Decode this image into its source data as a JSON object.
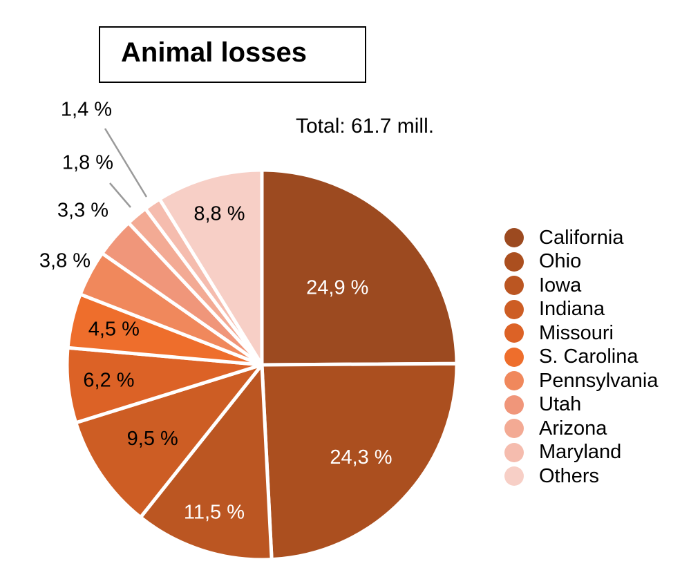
{
  "chart_data": {
    "type": "pie",
    "title": "Animal losses",
    "annotation": "Total: 61.7 mill.",
    "legend_position": "right",
    "slices": [
      {
        "name": "California",
        "value": 24.9,
        "label": "24,9 %",
        "color": "#9c4a20"
      },
      {
        "name": "Ohio",
        "value": 24.3,
        "label": "24,3 %",
        "color": "#ab4f1f"
      },
      {
        "name": "Iowa",
        "value": 11.5,
        "label": "11,5 %",
        "color": "#bb5622"
      },
      {
        "name": "Indiana",
        "value": 9.5,
        "label": "9,5 %",
        "color": "#cd5d24"
      },
      {
        "name": "Missouri",
        "value": 6.2,
        "label": "6,2 %",
        "color": "#dc6226"
      },
      {
        "name": "S. Carolina",
        "value": 4.5,
        "label": "4,5 %",
        "color": "#ee6e2c"
      },
      {
        "name": "Pennsylvania",
        "value": 3.8,
        "label": "3,8 %",
        "color": "#f0885c"
      },
      {
        "name": "Utah",
        "value": 3.3,
        "label": "3,3 %",
        "color": "#f0967a"
      },
      {
        "name": "Arizona",
        "value": 1.8,
        "label": "1,8 %",
        "color": "#f3aa94"
      },
      {
        "name": "Maryland",
        "value": 1.4,
        "label": "1,4 %",
        "color": "#f5bcae"
      },
      {
        "name": "Others",
        "value": 8.8,
        "label": "8,8 %",
        "color": "#f7cfc6"
      }
    ]
  }
}
